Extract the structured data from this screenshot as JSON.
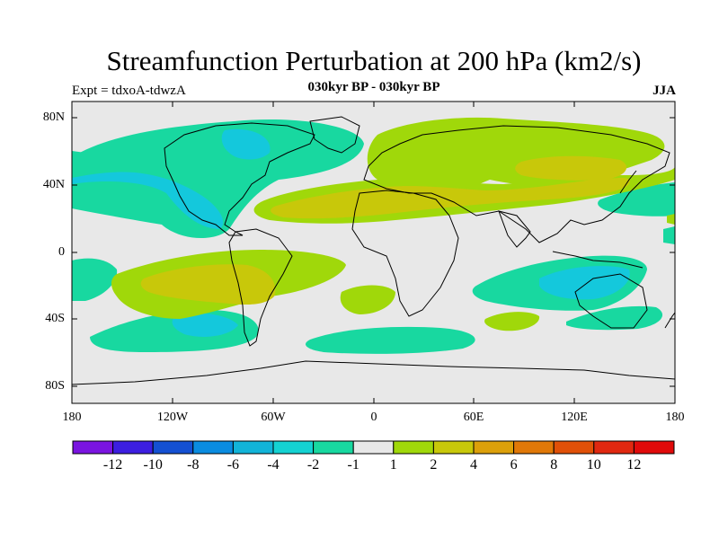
{
  "plot": {
    "title": "Streamfunction Perturbation at 200 hPa (km2/s)",
    "subtitle": "030kyr BP - 030kyr BP",
    "left_string": "Expt = tdxoA-tdwzA",
    "right_string": "JJA"
  },
  "axes": {
    "lat_labels": [
      "80N",
      "40N",
      "0",
      "40S",
      "80S"
    ],
    "lon_labels": [
      "180",
      "120W",
      "60W",
      "0",
      "60E",
      "120E",
      "180"
    ]
  },
  "labelbar": {
    "labels": [
      "-12",
      "-10",
      "-8",
      "-6",
      "-4",
      "-2",
      "-1",
      "1",
      "2",
      "4",
      "6",
      "8",
      "10",
      "12"
    ],
    "colors": [
      "#7a14e0",
      "#3c1ee0",
      "#1450d2",
      "#0a8ce0",
      "#12b4d8",
      "#14d2d2",
      "#18d8a0",
      "#e8e8e8",
      "#a0d80a",
      "#c8c80a",
      "#dca00a",
      "#e07808",
      "#e05008",
      "#e02810",
      "#e00a0a"
    ]
  },
  "colors": {
    "background": "#e8e8e8",
    "cyan_dark": "#14c8dc",
    "cyan": "#18d8a0",
    "green": "#a0d80a",
    "olive": "#c8c80a"
  }
}
